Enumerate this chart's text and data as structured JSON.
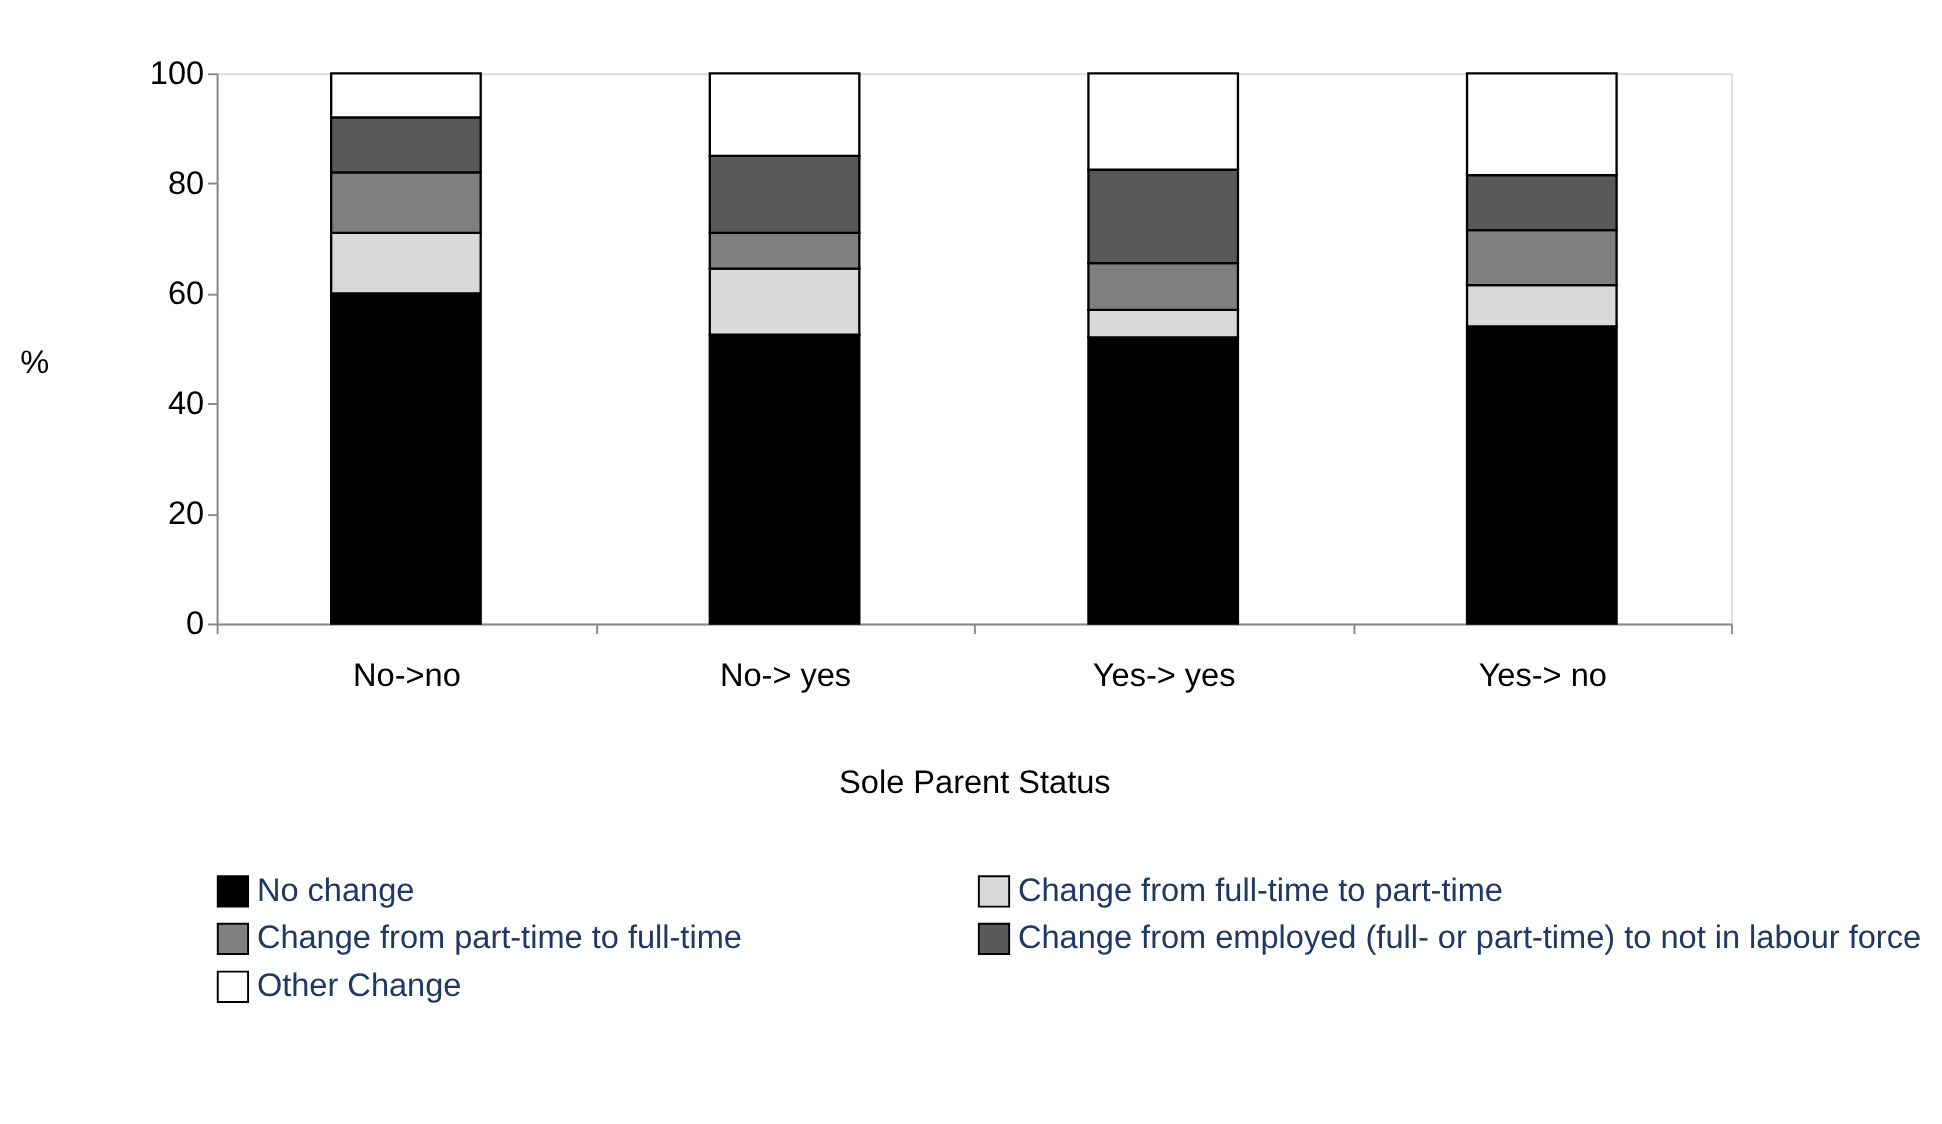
{
  "chart_data": {
    "type": "bar",
    "stacked": true,
    "xlabel": "Sole Parent Status",
    "ylabel": "%",
    "categories": [
      "No->no",
      "No-> yes",
      "Yes-> yes",
      "Yes-> no"
    ],
    "series": [
      {
        "name": "No change",
        "color": "#000000",
        "values": [
          60,
          52.5,
          52,
          54
        ]
      },
      {
        "name": "Change from full-time to part-time",
        "color": "#d9d9d9",
        "values": [
          11,
          12,
          5,
          7.5
        ]
      },
      {
        "name": "Change from part-time to full-time",
        "color": "#808080",
        "values": [
          11,
          6.5,
          8.5,
          10
        ]
      },
      {
        "name": "Change from employed (full- or part-time) to not in labour force",
        "color": "#595959",
        "values": [
          10,
          14,
          17,
          10
        ]
      },
      {
        "name": "Other Change",
        "color": "#ffffff",
        "values": [
          8,
          15,
          17.5,
          18.5
        ]
      }
    ],
    "ylim": [
      0,
      100
    ],
    "yticks": [
      0,
      20,
      40,
      60,
      80,
      100
    ],
    "grid": false,
    "legend": "bottom"
  }
}
